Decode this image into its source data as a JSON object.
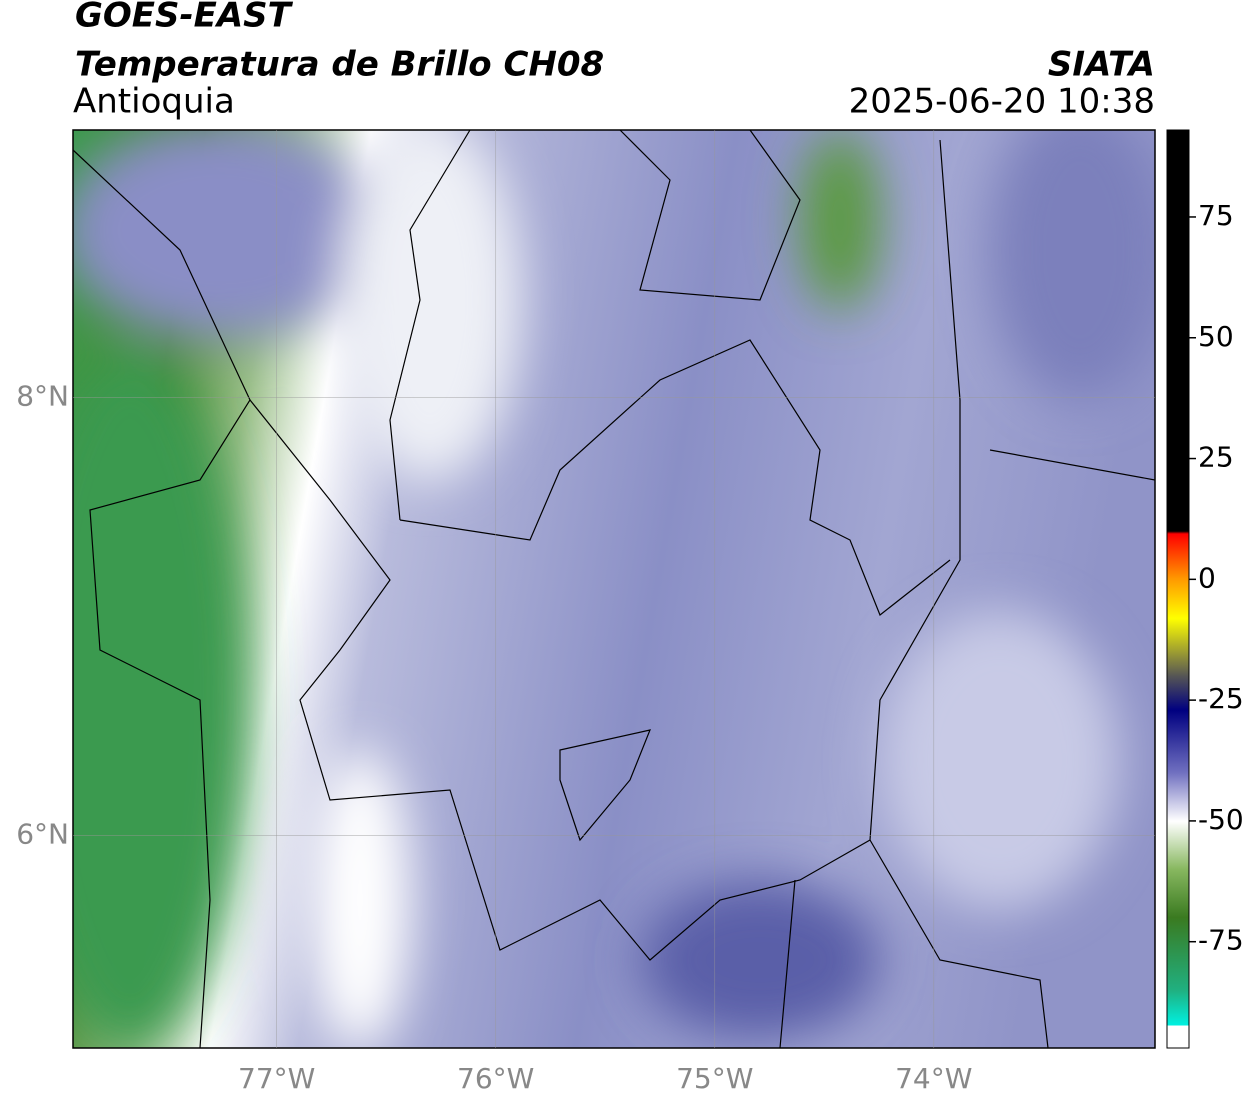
{
  "header": {
    "title": "GOES-EAST",
    "subtitle": "Temperatura de Brillo CH08",
    "region": "Antioquia",
    "source": "SIATA",
    "datetime": "2025-06-20 10:38"
  },
  "map": {
    "xlim": [
      -77.93,
      -72.99
    ],
    "ylim": [
      5.03,
      9.22
    ],
    "xticks": [
      {
        "value": -77,
        "label": "77°W"
      },
      {
        "value": -76,
        "label": "76°W"
      },
      {
        "value": -75,
        "label": "75°W"
      },
      {
        "value": -74,
        "label": "74°W"
      }
    ],
    "yticks": [
      {
        "value": 8,
        "label": "8°N"
      },
      {
        "value": 6,
        "label": "6°N"
      }
    ],
    "grid": true
  },
  "colorbar": {
    "lim": [
      -97,
      93
    ],
    "ticks": [
      75,
      50,
      25,
      0,
      -25,
      -50,
      -75
    ]
  }
}
